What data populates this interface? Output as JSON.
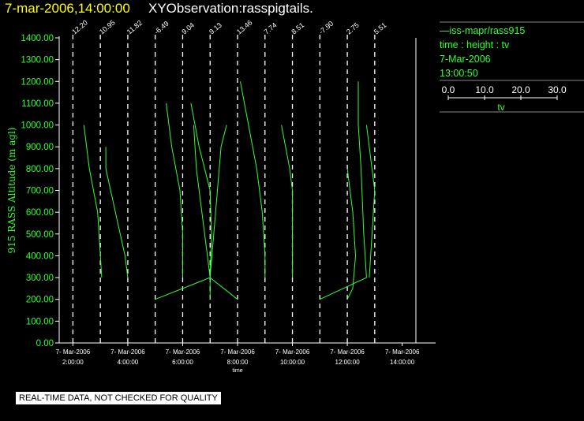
{
  "header": {
    "date_time": "7-mar-2006,14:00:00",
    "observation": "XYObservation:rasspigtails."
  },
  "legend": {
    "series_line": "—iss-mapr/rass915",
    "mapping": "time : height : tv",
    "date": "7-Mar-2006",
    "time": "13:00:50",
    "colorbar_ticks": [
      "0.0",
      "10.0",
      "20.0",
      "30.0"
    ],
    "colorbar_label": "tv"
  },
  "footer": {
    "quality_note": "REAL-TIME DATA, NOT CHECKED FOR QUALITY"
  },
  "colors": {
    "data": "#33ff33",
    "axis": "#ffffff",
    "title": "#ffff00",
    "background": "#000000"
  },
  "chart_data": {
    "type": "line",
    "title": "",
    "ylabel": "915 RASS Altitude (m agl)",
    "xlabel": "time",
    "ylim": [
      0,
      1400
    ],
    "xlim_hours": [
      1.5,
      14.5
    ],
    "y_ticks": [
      "0.00",
      "100.00",
      "200.00",
      "300.00",
      "400.00",
      "500.00",
      "600.00",
      "700.00",
      "800.00",
      "900.00",
      "1000.00",
      "1100.00",
      "1200.00",
      "1300.00",
      "1400.00"
    ],
    "x_ticks": [
      {
        "date": "7- Mar-2006",
        "time": "2:00:00"
      },
      {
        "date": "7- Mar-2006",
        "time": "4:00:00"
      },
      {
        "date": "7- Mar-2006",
        "time": "6:00:00"
      },
      {
        "date": "7- Mar-2006",
        "time": "8:00:00"
      },
      {
        "date": "7- Mar-2006",
        "time": "10:00:00"
      },
      {
        "date": "7- Mar-2006",
        "time": "12:00:00"
      },
      {
        "date": "7- Mar-2006",
        "time": "14:00:00"
      }
    ],
    "profiles": [
      {
        "base_time": "2:00",
        "surface_value": "12.20"
      },
      {
        "base_time": "3:00",
        "surface_value": "10.95"
      },
      {
        "base_time": "4:00",
        "surface_value": "11.82"
      },
      {
        "base_time": "5:00",
        "surface_value": "-6.49"
      },
      {
        "base_time": "6:00",
        "surface_value": "9.04"
      },
      {
        "base_time": "7:00",
        "surface_value": "9.13"
      },
      {
        "base_time": "8:00",
        "surface_value": "13.46"
      },
      {
        "base_time": "9:00",
        "surface_value": "7.74"
      },
      {
        "base_time": "10:00",
        "surface_value": "8.51"
      },
      {
        "base_time": "11:00",
        "surface_value": "-7.90"
      },
      {
        "base_time": "12:00",
        "surface_value": "2.75"
      },
      {
        "base_time": "13:00",
        "surface_value": "5.51"
      }
    ],
    "series": [
      {
        "points": [
          [
            2.4,
            1000
          ],
          [
            2.6,
            800
          ],
          [
            2.9,
            600
          ],
          [
            3.0,
            400
          ],
          [
            3.05,
            300
          ]
        ]
      },
      {
        "points": [
          [
            3.2,
            900
          ],
          [
            3.2,
            800
          ],
          [
            3.9,
            400
          ],
          [
            4.0,
            300
          ]
        ]
      },
      {
        "points": [
          [
            5.4,
            1100
          ],
          [
            5.6,
            900
          ],
          [
            5.9,
            700
          ],
          [
            6.0,
            500
          ],
          [
            6.0,
            300
          ]
        ]
      },
      {
        "points": [
          [
            5.0,
            200
          ],
          [
            7.0,
            300
          ],
          [
            6.9,
            400
          ],
          [
            6.7,
            600
          ],
          [
            6.5,
            800
          ],
          [
            6.4,
            1000
          ]
        ]
      },
      {
        "points": [
          [
            6.3,
            1100
          ],
          [
            6.6,
            900
          ],
          [
            7.0,
            700
          ],
          [
            7.05,
            500
          ],
          [
            7.0,
            300
          ],
          [
            7.0,
            200
          ]
        ]
      },
      {
        "points": [
          [
            7.0,
            300
          ],
          [
            7.2,
            600
          ],
          [
            7.4,
            900
          ],
          [
            7.6,
            1000
          ]
        ]
      },
      {
        "points": [
          [
            7.0,
            300
          ],
          [
            8.0,
            200
          ]
        ]
      },
      {
        "points": [
          [
            8.1,
            1200
          ],
          [
            8.4,
            1000
          ],
          [
            8.7,
            800
          ],
          [
            8.9,
            600
          ],
          [
            9.0,
            400
          ],
          [
            9.0,
            300
          ]
        ]
      },
      {
        "points": [
          [
            9.6,
            1000
          ],
          [
            9.9,
            800
          ],
          [
            10.0,
            700
          ],
          [
            10.0,
            500
          ],
          [
            10.0,
            300
          ]
        ]
      },
      {
        "points": [
          [
            11.0,
            200
          ],
          [
            12.7,
            300
          ],
          [
            12.6,
            500
          ],
          [
            12.5,
            800
          ],
          [
            12.4,
            1000
          ],
          [
            12.4,
            1200
          ]
        ]
      },
      {
        "points": [
          [
            12.0,
            800
          ],
          [
            12.2,
            600
          ],
          [
            12.3,
            400
          ],
          [
            12.2,
            250
          ],
          [
            12.0,
            200
          ]
        ]
      },
      {
        "points": [
          [
            12.7,
            1000
          ],
          [
            13.0,
            700
          ],
          [
            12.9,
            500
          ],
          [
            12.8,
            300
          ]
        ]
      }
    ]
  }
}
